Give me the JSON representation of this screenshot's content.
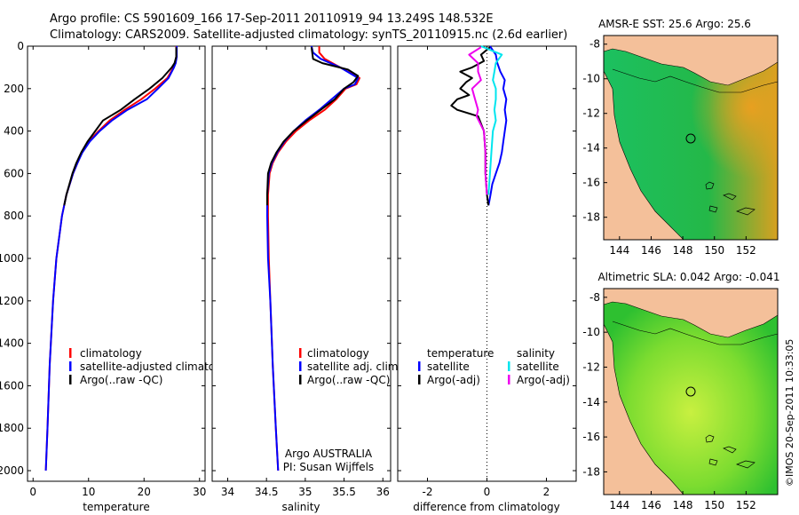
{
  "header": {
    "line1": "Argo profile: CS 5901609_166 17-Sep-2011 20110919_94 13.249S 148.532E",
    "line2": "Climatology: CARS2009. Satellite-adjusted climatology: synTS_20110915.nc (2.6d earlier)"
  },
  "colors": {
    "clim": "#ff0000",
    "sat": "#0000ff",
    "argo": "#000000",
    "sal_sat": "#00e5ee",
    "sal_argo": "#ee00ee",
    "land": "#f4c09a"
  },
  "chart_data": [
    {
      "type": "line",
      "name": "temperature-profile",
      "xlabel": "temperature",
      "ylabel": "",
      "xlim": [
        -1,
        31
      ],
      "ylim": [
        2050,
        0
      ],
      "xticks": [
        0,
        10,
        20,
        30
      ],
      "yticks": [
        0,
        200,
        400,
        600,
        800,
        1000,
        1200,
        1400,
        1600,
        1800,
        2000
      ],
      "legend": [
        "climatology",
        "satellite-adjusted climatology",
        "Argo(..raw -QC)"
      ],
      "series": [
        {
          "name": "climatology",
          "color": "#ff0000",
          "depth": [
            0,
            50,
            80,
            100,
            150,
            200,
            250,
            300,
            350,
            400,
            450,
            500,
            550,
            600,
            700,
            800,
            1000,
            1200,
            1500,
            1800,
            2000
          ],
          "values": [
            25.8,
            25.8,
            25.6,
            25.3,
            24.2,
            22.0,
            19.5,
            16.5,
            13.8,
            11.8,
            10.0,
            8.8,
            8.0,
            7.2,
            6.0,
            5.2,
            4.2,
            3.6,
            3.0,
            2.6,
            2.3
          ]
        },
        {
          "name": "satellite-adjusted climatology",
          "color": "#0000ff",
          "depth": [
            0,
            50,
            80,
            100,
            150,
            200,
            250,
            300,
            350,
            400,
            450,
            500,
            550,
            600,
            700,
            800,
            1000,
            1200,
            1500,
            1800,
            2000
          ],
          "values": [
            25.9,
            25.9,
            25.7,
            25.4,
            24.4,
            22.5,
            20.5,
            17.0,
            14.2,
            12.0,
            10.2,
            8.9,
            8.0,
            7.2,
            6.0,
            5.2,
            4.2,
            3.6,
            3.0,
            2.6,
            2.3
          ]
        },
        {
          "name": "Argo(..raw -QC)",
          "color": "#000000",
          "depth": [
            5,
            50,
            80,
            100,
            150,
            200,
            250,
            300,
            350,
            400,
            450,
            500,
            550,
            600,
            700,
            750
          ],
          "values": [
            25.8,
            25.8,
            25.5,
            25.0,
            23.3,
            21.0,
            18.3,
            15.8,
            12.6,
            11.2,
            9.8,
            8.7,
            7.8,
            7.1,
            6.0,
            5.6
          ]
        }
      ]
    },
    {
      "type": "line",
      "name": "salinity-profile",
      "xlabel": "salinity",
      "xlim": [
        33.8,
        36.1
      ],
      "ylim": [
        2050,
        0
      ],
      "xticks": [
        34,
        34.5,
        35,
        35.5,
        36
      ],
      "legend": [
        "climatology",
        "satellite adj. clim.",
        "Argo(..raw -QC)"
      ],
      "annotation": [
        "Argo AUSTRALIA",
        "PI: Susan Wijffels"
      ],
      "series": [
        {
          "name": "climatology",
          "color": "#ff0000",
          "depth": [
            0,
            30,
            60,
            100,
            150,
            180,
            200,
            250,
            300,
            350,
            400,
            450,
            500,
            550,
            600,
            700,
            800,
            1000,
            1200,
            1500,
            1800,
            2000
          ],
          "values": [
            35.18,
            35.18,
            35.25,
            35.45,
            35.7,
            35.66,
            35.52,
            35.4,
            35.25,
            35.05,
            34.88,
            34.75,
            34.65,
            34.58,
            34.54,
            34.52,
            34.52,
            34.53,
            34.55,
            34.58,
            34.62,
            34.65
          ]
        },
        {
          "name": "satellite adj. clim.",
          "color": "#0000ff",
          "depth": [
            0,
            30,
            60,
            100,
            150,
            180,
            200,
            250,
            300,
            350,
            400,
            450,
            500,
            550,
            600,
            700,
            800,
            1000,
            1200,
            1500,
            1800,
            2000
          ],
          "values": [
            35.08,
            35.1,
            35.2,
            35.45,
            35.68,
            35.64,
            35.5,
            35.34,
            35.18,
            35.0,
            34.85,
            34.73,
            34.64,
            34.57,
            34.53,
            34.51,
            34.51,
            34.52,
            34.55,
            34.58,
            34.62,
            34.65
          ]
        },
        {
          "name": "Argo(..raw -QC)",
          "color": "#000000",
          "depth": [
            5,
            30,
            60,
            80,
            110,
            140,
            170,
            200,
            250,
            300,
            350,
            400,
            450,
            500,
            550,
            600,
            700,
            750
          ],
          "values": [
            35.08,
            35.09,
            35.1,
            35.22,
            35.55,
            35.68,
            35.62,
            35.5,
            35.38,
            35.2,
            35.02,
            34.85,
            34.72,
            34.63,
            34.56,
            34.52,
            34.51,
            34.51
          ]
        }
      ]
    },
    {
      "type": "line",
      "name": "difference-profile",
      "xlabel": "difference from climatology",
      "xlim": [
        -3,
        3
      ],
      "ylim": [
        2050,
        0
      ],
      "xticks": [
        -2,
        0,
        2
      ],
      "legend_titles": [
        "temperature",
        "salinity"
      ],
      "legend": [
        "satellite",
        "Argo(-adj)",
        "satellite",
        "Argo(-adj)"
      ],
      "series": [
        {
          "name": "temperature satellite",
          "color": "#0000ff",
          "depth": [
            0,
            40,
            80,
            120,
            160,
            200,
            250,
            300,
            350,
            400,
            450,
            500,
            550,
            600,
            650,
            700,
            730,
            750
          ],
          "values": [
            0.1,
            0.3,
            0.35,
            0.45,
            0.6,
            0.55,
            0.65,
            0.6,
            0.65,
            0.6,
            0.55,
            0.5,
            0.42,
            0.3,
            0.18,
            0.12,
            0.08,
            0.05
          ]
        },
        {
          "name": "temperature Argo(-adj)",
          "color": "#000000",
          "depth": [
            5,
            40,
            70,
            100,
            120,
            150,
            170,
            200,
            230,
            250,
            280,
            300,
            330,
            400,
            500,
            600,
            700,
            750
          ],
          "values": [
            0.1,
            -0.2,
            -0.1,
            -0.5,
            -0.9,
            -0.5,
            -0.7,
            -0.9,
            -0.6,
            -1.0,
            -1.2,
            -1.0,
            -0.3,
            -0.1,
            -0.05,
            -0.05,
            0.0,
            0.05
          ]
        },
        {
          "name": "salinity satellite",
          "color": "#00e5ee",
          "depth": [
            0,
            40,
            80,
            120,
            160,
            200,
            250,
            300,
            350,
            400,
            500,
            600,
            700
          ],
          "values": [
            -0.2,
            0.5,
            0.3,
            0.25,
            0.2,
            0.3,
            0.3,
            0.25,
            0.3,
            0.2,
            0.15,
            0.1,
            0.05
          ]
        },
        {
          "name": "salinity Argo(-adj)",
          "color": "#ee00ee",
          "depth": [
            5,
            40,
            80,
            120,
            160,
            200,
            250,
            300,
            330,
            400,
            500,
            600,
            700
          ],
          "values": [
            -0.2,
            -0.6,
            -0.3,
            -0.3,
            -0.2,
            -0.5,
            -0.4,
            -0.3,
            -0.35,
            -0.1,
            -0.05,
            -0.05,
            0.0
          ]
        }
      ]
    },
    {
      "type": "heatmap",
      "name": "sst-map",
      "title": "AMSR-E SST: 25.6 Argo: 25.6",
      "xticks": [
        144,
        146,
        148,
        150,
        152
      ],
      "yticks": [
        -8,
        -10,
        -12,
        -14,
        -16,
        -18
      ],
      "xlim": [
        143,
        154
      ],
      "ylim": [
        -19.3,
        -7.5
      ],
      "argo_position": [
        148.532,
        -13.249
      ]
    },
    {
      "type": "heatmap",
      "name": "sla-map",
      "title": "Altimetric SLA: 0.042 Argo: -0.041",
      "xticks": [
        144,
        146,
        148,
        150,
        152
      ],
      "yticks": [
        -8,
        -10,
        -12,
        -14,
        -16,
        -18
      ],
      "xlim": [
        143,
        154
      ],
      "ylim": [
        -19.3,
        -7.5
      ],
      "argo_position": [
        148.532,
        -13.249
      ]
    }
  ],
  "footer": {
    "credit": "©IMOS 20-Sep-2011 10:33:05"
  }
}
